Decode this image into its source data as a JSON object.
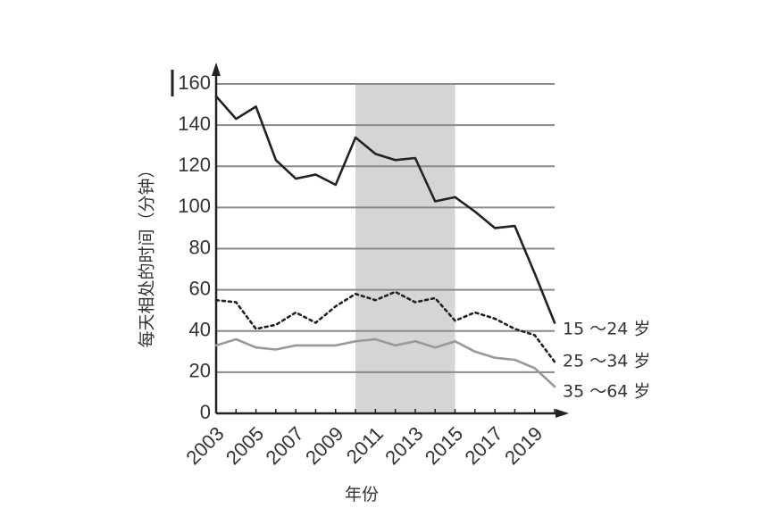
{
  "chart_data": {
    "type": "line",
    "ylabel": "每天相处的时间（分钟）",
    "xlabel": "年份",
    "ylim": [
      0,
      160
    ],
    "yticks": [
      0,
      20,
      40,
      60,
      80,
      100,
      120,
      140,
      160
    ],
    "xlim": [
      2003,
      2020
    ],
    "xticks": [
      2003,
      2005,
      2007,
      2009,
      2011,
      2013,
      2015,
      2017,
      2019
    ],
    "grid": "horizontal",
    "shaded_range": [
      2010,
      2015
    ],
    "colors": {
      "grid": "#8a8a8a",
      "shade": "#d5d5d5",
      "series1": "#222222",
      "series2": "#222222",
      "series3": "#999999"
    },
    "series": [
      {
        "name": "15 ～24 岁",
        "style": "solid-dark",
        "x": [
          2003,
          2004,
          2005,
          2006,
          2007,
          2008,
          2009,
          2010,
          2011,
          2012,
          2013,
          2014,
          2015,
          2016,
          2017,
          2018,
          2019,
          2020
        ],
        "values": [
          154,
          143,
          149,
          123,
          114,
          116,
          111,
          134,
          126,
          123,
          124,
          103,
          105,
          98,
          90,
          91,
          68,
          44
        ]
      },
      {
        "name": "25 ～34 岁",
        "style": "dotted",
        "x": [
          2003,
          2004,
          2005,
          2006,
          2007,
          2008,
          2009,
          2010,
          2011,
          2012,
          2013,
          2014,
          2015,
          2016,
          2017,
          2018,
          2019,
          2020
        ],
        "values": [
          55,
          54,
          41,
          43,
          49,
          44,
          52,
          58,
          55,
          59,
          54,
          56,
          45,
          49,
          46,
          41,
          38,
          25
        ]
      },
      {
        "name": "35 ～64 岁",
        "style": "solid-light",
        "x": [
          2003,
          2004,
          2005,
          2006,
          2007,
          2008,
          2009,
          2010,
          2011,
          2012,
          2013,
          2014,
          2015,
          2016,
          2017,
          2018,
          2019,
          2020
        ],
        "values": [
          33,
          36,
          32,
          31,
          33,
          33,
          33,
          35,
          36,
          33,
          35,
          32,
          35,
          30,
          27,
          26,
          22,
          13
        ]
      }
    ]
  }
}
